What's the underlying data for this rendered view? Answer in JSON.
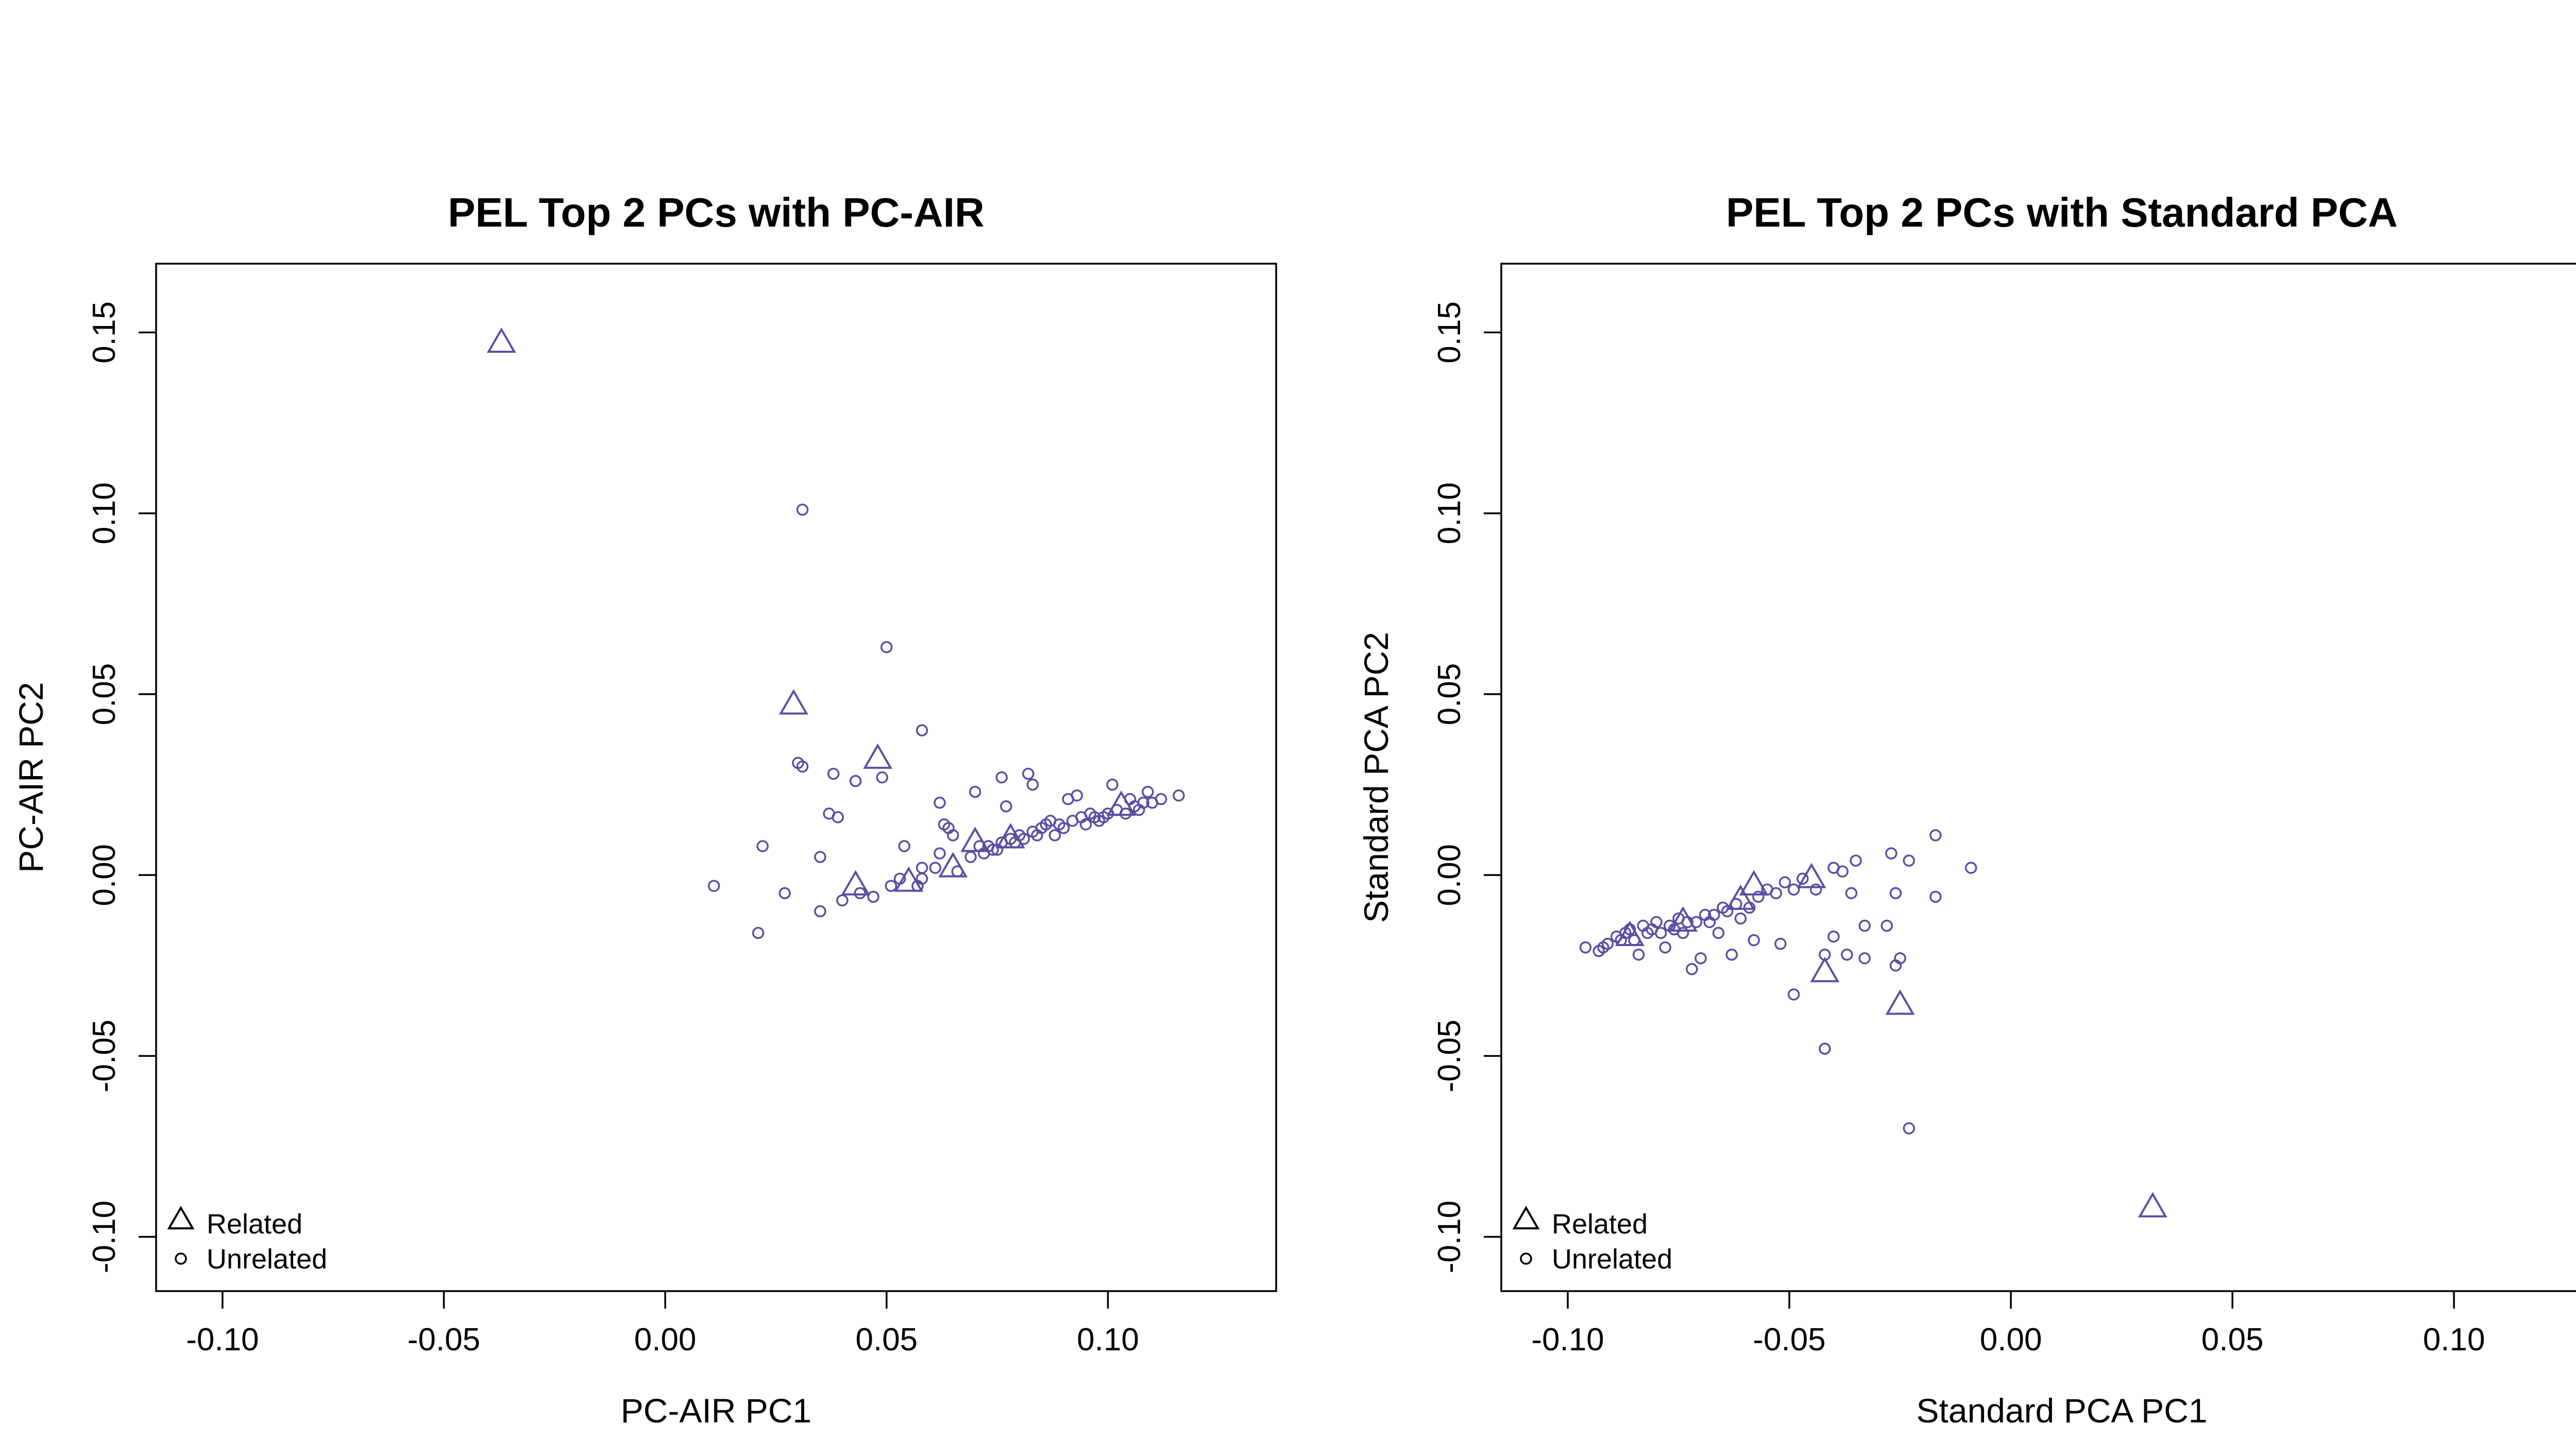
{
  "colors": {
    "points": "#5b4da3",
    "axes": "#000000",
    "background": "#ffffff"
  },
  "chart_data": [
    {
      "type": "scatter",
      "title": "PEL Top 2 PCs with PC-AIR",
      "xlabel": "PC-AIR PC1",
      "ylabel": "PC-AIR PC2",
      "xlim": [
        -0.115,
        0.138
      ],
      "ylim": [
        -0.115,
        0.169
      ],
      "xticks": [
        -0.1,
        -0.05,
        0.0,
        0.05,
        0.1
      ],
      "xtick_labels": [
        "-0.10",
        "-0.05",
        "0.00",
        "0.05",
        "0.10"
      ],
      "yticks": [
        -0.1,
        -0.05,
        0.0,
        0.05,
        0.1,
        0.15
      ],
      "ytick_labels": [
        "-0.10",
        "-0.05",
        "0.00",
        "0.05",
        "0.10",
        "0.15"
      ],
      "legend": {
        "placement": "bottom-left",
        "entries": [
          {
            "label": "Related",
            "marker": "triangle"
          },
          {
            "label": "Unrelated",
            "marker": "circle"
          }
        ]
      },
      "series": [
        {
          "name": "Related",
          "marker": "triangle",
          "points": [
            [
              -0.037,
              0.147
            ],
            [
              0.029,
              0.047
            ],
            [
              0.048,
              0.032
            ],
            [
              0.043,
              -0.003
            ],
            [
              0.055,
              -0.002
            ],
            [
              0.065,
              0.002
            ],
            [
              0.07,
              0.009
            ],
            [
              0.078,
              0.01
            ],
            [
              0.103,
              0.019
            ]
          ]
        },
        {
          "name": "Unrelated",
          "marker": "circle",
          "points": [
            [
              0.031,
              0.101
            ],
            [
              0.05,
              0.063
            ],
            [
              0.058,
              0.04
            ],
            [
              0.03,
              0.031
            ],
            [
              0.031,
              0.03
            ],
            [
              0.038,
              0.028
            ],
            [
              0.043,
              0.026
            ],
            [
              0.049,
              0.027
            ],
            [
              0.037,
              0.017
            ],
            [
              0.039,
              0.016
            ],
            [
              0.035,
              0.005
            ],
            [
              0.022,
              0.008
            ],
            [
              0.011,
              -0.003
            ],
            [
              0.027,
              -0.005
            ],
            [
              0.021,
              -0.016
            ],
            [
              0.035,
              -0.01
            ],
            [
              0.04,
              -0.007
            ],
            [
              0.044,
              -0.005
            ],
            [
              0.047,
              -0.006
            ],
            [
              0.051,
              -0.003
            ],
            [
              0.053,
              -0.001
            ],
            [
              0.054,
              0.008
            ],
            [
              0.057,
              -0.003
            ],
            [
              0.058,
              0.002
            ],
            [
              0.058,
              -0.001
            ],
            [
              0.061,
              0.002
            ],
            [
              0.062,
              0.006
            ],
            [
              0.062,
              0.02
            ],
            [
              0.063,
              0.014
            ],
            [
              0.064,
              0.013
            ],
            [
              0.065,
              0.011
            ],
            [
              0.066,
              0.001
            ],
            [
              0.069,
              0.005
            ],
            [
              0.07,
              0.023
            ],
            [
              0.071,
              0.008
            ],
            [
              0.072,
              0.006
            ],
            [
              0.073,
              0.008
            ],
            [
              0.074,
              0.007
            ],
            [
              0.075,
              0.007
            ],
            [
              0.076,
              0.009
            ],
            [
              0.076,
              0.027
            ],
            [
              0.077,
              0.019
            ],
            [
              0.078,
              0.01
            ],
            [
              0.079,
              0.009
            ],
            [
              0.08,
              0.011
            ],
            [
              0.081,
              0.01
            ],
            [
              0.082,
              0.028
            ],
            [
              0.083,
              0.012
            ],
            [
              0.083,
              0.025
            ],
            [
              0.084,
              0.011
            ],
            [
              0.085,
              0.013
            ],
            [
              0.086,
              0.014
            ],
            [
              0.087,
              0.015
            ],
            [
              0.088,
              0.011
            ],
            [
              0.089,
              0.014
            ],
            [
              0.09,
              0.013
            ],
            [
              0.091,
              0.021
            ],
            [
              0.092,
              0.015
            ],
            [
              0.093,
              0.022
            ],
            [
              0.094,
              0.016
            ],
            [
              0.095,
              0.014
            ],
            [
              0.096,
              0.017
            ],
            [
              0.097,
              0.016
            ],
            [
              0.098,
              0.015
            ],
            [
              0.099,
              0.016
            ],
            [
              0.1,
              0.017
            ],
            [
              0.101,
              0.025
            ],
            [
              0.102,
              0.018
            ],
            [
              0.104,
              0.017
            ],
            [
              0.105,
              0.021
            ],
            [
              0.106,
              0.019
            ],
            [
              0.107,
              0.018
            ],
            [
              0.108,
              0.02
            ],
            [
              0.109,
              0.023
            ],
            [
              0.11,
              0.02
            ],
            [
              0.112,
              0.021
            ],
            [
              0.116,
              0.022
            ]
          ]
        }
      ]
    },
    {
      "type": "scatter",
      "title": "PEL Top 2 PCs with Standard PCA",
      "xlabel": "Standard PCA PC1",
      "ylabel": "Standard PCA PC2",
      "xlim": [
        -0.115,
        0.138
      ],
      "ylim": [
        -0.115,
        0.169
      ],
      "xticks": [
        -0.1,
        -0.05,
        0.0,
        0.05,
        0.1
      ],
      "xtick_labels": [
        "-0.10",
        "-0.05",
        "0.00",
        "0.05",
        "0.10"
      ],
      "yticks": [
        -0.1,
        -0.05,
        0.0,
        0.05,
        0.1,
        0.15
      ],
      "ytick_labels": [
        "-0.10",
        "-0.05",
        "0.00",
        "0.05",
        "0.10",
        "0.15"
      ],
      "legend": {
        "placement": "bottom-left",
        "entries": [
          {
            "label": "Related",
            "marker": "triangle"
          },
          {
            "label": "Unrelated",
            "marker": "circle"
          }
        ]
      },
      "series": [
        {
          "name": "Related",
          "marker": "triangle",
          "points": [
            [
              0.032,
              -0.092
            ],
            [
              -0.025,
              -0.036
            ],
            [
              -0.042,
              -0.027
            ],
            [
              -0.058,
              -0.003
            ],
            [
              -0.061,
              -0.007
            ],
            [
              -0.074,
              -0.013
            ],
            [
              -0.086,
              -0.017
            ],
            [
              -0.045,
              -0.001
            ]
          ]
        },
        {
          "name": "Unrelated",
          "marker": "circle",
          "points": [
            [
              -0.023,
              -0.07
            ],
            [
              -0.042,
              -0.048
            ],
            [
              -0.049,
              -0.033
            ],
            [
              -0.025,
              -0.023
            ],
            [
              -0.026,
              -0.025
            ],
            [
              -0.033,
              -0.023
            ],
            [
              -0.037,
              -0.022
            ],
            [
              -0.042,
              -0.022
            ],
            [
              -0.04,
              -0.017
            ],
            [
              -0.052,
              -0.019
            ],
            [
              -0.017,
              0.011
            ],
            [
              -0.009,
              0.002
            ],
            [
              -0.017,
              -0.006
            ],
            [
              -0.026,
              -0.005
            ],
            [
              -0.028,
              -0.014
            ],
            [
              -0.033,
              -0.014
            ],
            [
              -0.036,
              -0.005
            ],
            [
              -0.035,
              0.004
            ],
            [
              -0.038,
              0.001
            ],
            [
              -0.04,
              0.002
            ],
            [
              -0.023,
              0.004
            ],
            [
              -0.027,
              0.006
            ],
            [
              -0.044,
              -0.004
            ],
            [
              -0.047,
              -0.001
            ],
            [
              -0.049,
              -0.004
            ],
            [
              -0.051,
              -0.002
            ],
            [
              -0.053,
              -0.005
            ],
            [
              -0.055,
              -0.004
            ],
            [
              -0.057,
              -0.006
            ],
            [
              -0.058,
              -0.018
            ],
            [
              -0.059,
              -0.009
            ],
            [
              -0.061,
              -0.012
            ],
            [
              -0.062,
              -0.008
            ],
            [
              -0.063,
              -0.022
            ],
            [
              -0.064,
              -0.01
            ],
            [
              -0.065,
              -0.009
            ],
            [
              -0.066,
              -0.016
            ],
            [
              -0.067,
              -0.011
            ],
            [
              -0.068,
              -0.013
            ],
            [
              -0.069,
              -0.011
            ],
            [
              -0.07,
              -0.023
            ],
            [
              -0.071,
              -0.013
            ],
            [
              -0.072,
              -0.026
            ],
            [
              -0.073,
              -0.013
            ],
            [
              -0.074,
              -0.016
            ],
            [
              -0.075,
              -0.012
            ],
            [
              -0.076,
              -0.015
            ],
            [
              -0.077,
              -0.014
            ],
            [
              -0.078,
              -0.02
            ],
            [
              -0.079,
              -0.016
            ],
            [
              -0.08,
              -0.013
            ],
            [
              -0.081,
              -0.015
            ],
            [
              -0.082,
              -0.016
            ],
            [
              -0.083,
              -0.014
            ],
            [
              -0.084,
              -0.022
            ],
            [
              -0.085,
              -0.018
            ],
            [
              -0.086,
              -0.015
            ],
            [
              -0.087,
              -0.016
            ],
            [
              -0.088,
              -0.018
            ],
            [
              -0.089,
              -0.017
            ],
            [
              -0.091,
              -0.019
            ],
            [
              -0.092,
              -0.02
            ],
            [
              -0.093,
              -0.021
            ],
            [
              -0.096,
              -0.02
            ]
          ]
        }
      ]
    }
  ]
}
